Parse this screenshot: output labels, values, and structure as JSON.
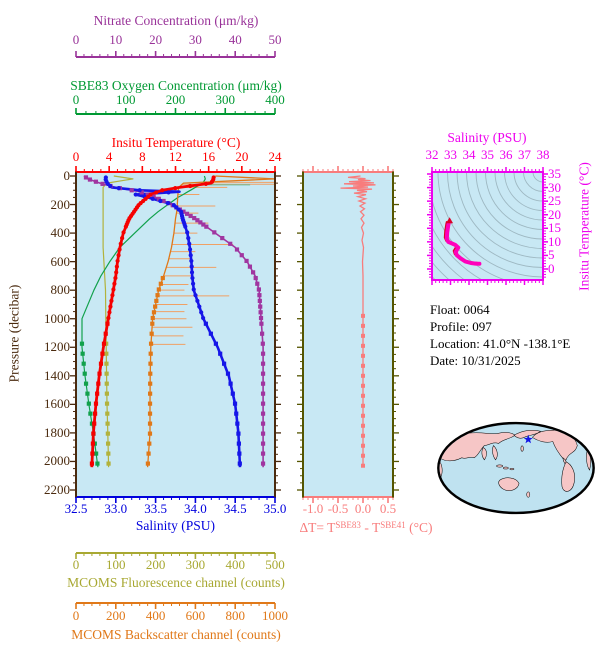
{
  "axes": {
    "nitrate": {
      "title": "Nitrate Concentration (μm/kg)",
      "color": "#993399",
      "min": 0,
      "max": 50,
      "ticks": [
        0,
        10,
        20,
        30,
        40,
        50
      ]
    },
    "oxygen": {
      "title": "SBE83 Oxygen Concentration (μm/kg)",
      "color": "#009933",
      "min": 0,
      "max": 400,
      "ticks": [
        0,
        100,
        200,
        300,
        400
      ]
    },
    "temperature": {
      "title": "Insitu Temperature (°C)",
      "color": "#FF0000",
      "min": 0,
      "max": 24,
      "ticks": [
        0,
        4,
        8,
        12,
        16,
        20,
        24
      ]
    },
    "pressure": {
      "title": "Pressure (decibar)",
      "color": "#4A2A0E",
      "min": 0,
      "max": 2250,
      "ticks": [
        0,
        200,
        400,
        600,
        800,
        1000,
        1200,
        1400,
        1600,
        1800,
        2000,
        2200
      ]
    },
    "salinity": {
      "title": "Salinity (PSU)",
      "color": "#0000DD",
      "min": 32.5,
      "max": 35.0,
      "ticks": [
        "32.5",
        "33.0",
        "33.5",
        "34.0",
        "34.5",
        "35.0"
      ]
    },
    "fluorescence": {
      "title": "MCOMS Fluorescence channel (counts)",
      "color": "#A8A832",
      "min": 0,
      "max": 500,
      "ticks": [
        0,
        100,
        200,
        300,
        400,
        500
      ]
    },
    "backscatter": {
      "title": "MCOMS Backscatter channel (counts)",
      "color": "#E07818",
      "min": 0,
      "max": 1000,
      "ticks": [
        0,
        200,
        400,
        600,
        800,
        1000
      ]
    },
    "delta_t": {
      "label": {
        "p1": "ΔT= T",
        "s1": "SBE83",
        "p2": " - T",
        "s2": "SBE41",
        "p3": " (°C)"
      },
      "color": "#F87C7C",
      "frame_color": "#555500",
      "min": -1.2,
      "max": 0.6,
      "ticks": [
        "-1.0",
        "-0.5",
        "0.0",
        "0.5"
      ]
    },
    "ts_salinity": {
      "title": "Salinity (PSU)",
      "color": "#EE00EE",
      "min": 32,
      "max": 38,
      "ticks": [
        32,
        33,
        34,
        35,
        36,
        37,
        38
      ]
    },
    "ts_temperature": {
      "title": "Insitu Temperature (°C)",
      "color": "#EE00EE",
      "ticks": [
        0,
        5,
        10,
        15,
        20,
        25,
        30,
        35
      ]
    }
  },
  "info": {
    "float": "Float:  0064",
    "profile": "Profile:  097",
    "location": "Location:  41.0°N  -138.1°E",
    "date": "Date:  10/31/2025"
  },
  "map": {
    "ocean_color": "#BFE2F0",
    "land_color": "#F6C6C6",
    "star_color": "#1414E6",
    "location_note": "41.0°N -138.1°E"
  },
  "style": {
    "panel_bg": "#C8E8F4",
    "contour_color": "#9EB8C2",
    "ts_curve_color": "#FF00BB",
    "ts_curve_edge": "#DC0028",
    "spike_color": "#F0A064",
    "oxy_spike_color": "#66BFA0"
  },
  "chart_data": [
    {
      "type": "line",
      "title": "Float vertical profiles vs pressure",
      "ylabel": "Pressure (decibar)",
      "ylim": [
        0,
        2250
      ],
      "pressure_db": [
        0,
        20,
        50,
        80,
        100,
        110,
        130,
        150,
        200,
        250,
        300,
        400,
        500,
        600,
        700,
        800,
        1000,
        1200,
        1400,
        1600,
        1800,
        2040
      ],
      "series": [
        {
          "name": "MCOMS Fluorescence",
          "units": "counts",
          "axis": "fluorescence",
          "color": "#B2B23C",
          "width": 1.2,
          "marker": "square",
          "marker_from": 1150,
          "values": [
            95,
            143,
            78,
            68,
            68,
            68,
            68,
            68,
            68,
            68,
            68,
            68,
            68,
            70,
            72,
            74,
            75,
            76,
            77,
            78,
            80,
            82
          ]
        },
        {
          "name": "SBE83 Oxygen",
          "units": "μm/kg",
          "axis": "oxygen",
          "color": "#11A14C",
          "width": 1.2,
          "marker": "square",
          "marker_from": 1150,
          "values": [
            258,
            260,
            255,
            240,
            230,
            225,
            215,
            205,
            185,
            165,
            148,
            118,
            88,
            68,
            50,
            36,
            12,
            12,
            18,
            26,
            35,
            44
          ]
        },
        {
          "name": "MCOMS Backscatter",
          "units": "counts",
          "axis": "backscatter",
          "color": "#E07818",
          "width": 1.3,
          "marker": "square",
          "marker_from": 700,
          "values": [
            700,
            1000,
            540,
            516,
            514,
            513,
            512,
            511,
            509,
            506,
            500,
            492,
            480,
            463,
            440,
            415,
            385,
            376,
            373,
            372,
            372,
            360
          ]
        },
        {
          "name": "Nitrate",
          "units": "μm/kg",
          "axis": "nitrate",
          "color": "#A035A0",
          "width": 1.6,
          "marker": "square",
          "marker_from": 0,
          "values": [
            2,
            3,
            6,
            10,
            14,
            16,
            18,
            20,
            24,
            27,
            30,
            35,
            40,
            43,
            45,
            46,
            46.5,
            47,
            47,
            47,
            47,
            47
          ]
        },
        {
          "name": "Salinity",
          "units": "PSU",
          "axis": "salinity",
          "color": "#1616E8",
          "width": 2.6,
          "marker": "circle",
          "marker_from": 0,
          "values": [
            32.88,
            32.87,
            32.89,
            32.95,
            33.3,
            33.8,
            33.25,
            33.4,
            33.72,
            33.82,
            33.84,
            33.9,
            33.93,
            33.95,
            33.96,
            33.98,
            34.1,
            34.28,
            34.42,
            34.5,
            34.54,
            34.56
          ]
        },
        {
          "name": "Insitu Temperature",
          "units": "°C",
          "axis": "temperature",
          "color": "#F50000",
          "width": 2.8,
          "marker": "circle",
          "marker_from": 0,
          "values": [
            16.6,
            16.6,
            16.3,
            12.5,
            10.4,
            9.9,
            9.0,
            8.6,
            7.6,
            7.0,
            6.4,
            5.7,
            5.3,
            5.0,
            4.8,
            4.5,
            3.9,
            3.3,
            2.8,
            2.4,
            2.1,
            1.9
          ]
        }
      ],
      "backscatter_spikes": [
        {
          "p": 45,
          "v": 1000
        },
        {
          "p": 58,
          "v": 1000
        },
        {
          "p": 80,
          "v": 760
        },
        {
          "p": 130,
          "v": 620
        },
        {
          "p": 210,
          "v": 700
        },
        {
          "p": 260,
          "v": 615
        },
        {
          "p": 330,
          "v": 665
        },
        {
          "p": 400,
          "v": 610
        },
        {
          "p": 480,
          "v": 790
        },
        {
          "p": 530,
          "v": 600
        },
        {
          "p": 580,
          "v": 575
        },
        {
          "p": 640,
          "v": 705
        },
        {
          "p": 700,
          "v": 590
        },
        {
          "p": 760,
          "v": 565
        },
        {
          "p": 800,
          "v": 545
        },
        {
          "p": 840,
          "v": 770
        },
        {
          "p": 900,
          "v": 560
        },
        {
          "p": 950,
          "v": 545
        },
        {
          "p": 1000,
          "v": 555
        },
        {
          "p": 1060,
          "v": 585
        },
        {
          "p": 1120,
          "v": 540
        },
        {
          "p": 1180,
          "v": 550
        }
      ],
      "oxygen_spikes": [
        {
          "p": 62,
          "v": 350
        }
      ]
    },
    {
      "type": "line",
      "title": "ΔT = T_SBE83 - T_SBE41 (°C) vs pressure",
      "xlim": [
        -1.2,
        0.6
      ],
      "points": [
        [
          0,
          -0.05
        ],
        [
          10,
          -0.3
        ],
        [
          18,
          0.05
        ],
        [
          25,
          -0.1
        ],
        [
          32,
          0.15
        ],
        [
          40,
          -0.28
        ],
        [
          48,
          0.22
        ],
        [
          55,
          -0.38
        ],
        [
          62,
          0.25
        ],
        [
          70,
          -0.2
        ],
        [
          78,
          0.1
        ],
        [
          85,
          -0.45
        ],
        [
          92,
          0.18
        ],
        [
          100,
          -0.12
        ],
        [
          110,
          0.08
        ],
        [
          120,
          -0.18
        ],
        [
          130,
          0.06
        ],
        [
          145,
          -0.1
        ],
        [
          160,
          0.05
        ],
        [
          175,
          -0.08
        ],
        [
          190,
          0.04
        ],
        [
          210,
          -0.06
        ],
        [
          230,
          0.03
        ],
        [
          250,
          -0.05
        ],
        [
          275,
          0.02
        ],
        [
          300,
          -0.04
        ],
        [
          330,
          0.02
        ],
        [
          360,
          -0.03
        ],
        [
          400,
          0.01
        ],
        [
          450,
          -0.02
        ],
        [
          500,
          0.01
        ],
        [
          600,
          -0.01
        ],
        [
          700,
          0
        ],
        [
          800,
          0
        ],
        [
          900,
          0
        ],
        [
          1000,
          0
        ],
        [
          1200,
          0
        ],
        [
          1400,
          0
        ],
        [
          1600,
          0
        ],
        [
          1800,
          0
        ],
        [
          2040,
          0
        ]
      ]
    },
    {
      "type": "line",
      "title": "T-S diagram (Salinity vs Insitu Temperature)",
      "xlim": [
        32,
        38
      ],
      "ylim": [
        -4,
        36
      ],
      "points_s_t": [
        [
          32.92,
          17.2
        ],
        [
          32.88,
          16.2
        ],
        [
          32.82,
          13.5
        ],
        [
          32.8,
          11.2
        ],
        [
          32.88,
          10.0
        ],
        [
          33.25,
          8.9
        ],
        [
          33.42,
          7.9
        ],
        [
          33.28,
          6.3
        ],
        [
          33.34,
          5.1
        ],
        [
          33.55,
          3.9
        ],
        [
          33.8,
          2.8
        ],
        [
          34.1,
          2.2
        ],
        [
          34.35,
          2.0
        ],
        [
          34.56,
          1.9
        ]
      ]
    }
  ]
}
